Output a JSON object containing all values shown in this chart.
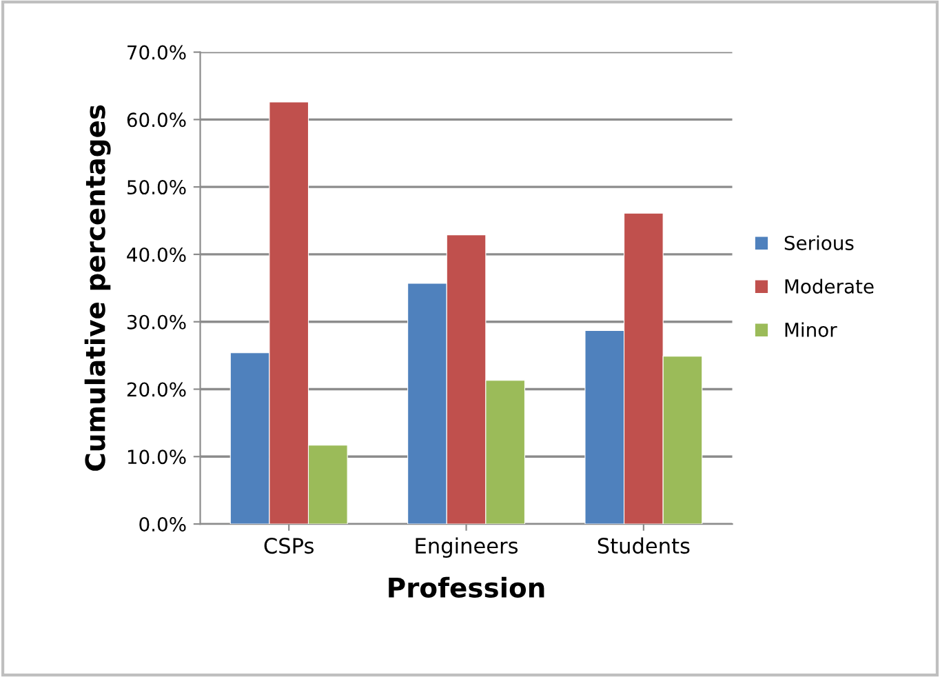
{
  "chart_data": {
    "type": "bar",
    "xlabel": "Profession",
    "ylabel": "Cumulative percentages",
    "categories": [
      "CSPs",
      "Engineers",
      "Students"
    ],
    "series": [
      {
        "name": "Serious",
        "color": "#4f81bd",
        "values": [
          25.4,
          35.7,
          28.7
        ]
      },
      {
        "name": "Moderate",
        "color": "#c0504d",
        "values": [
          62.6,
          42.9,
          46.1
        ]
      },
      {
        "name": "Minor",
        "color": "#9bbb59",
        "values": [
          11.7,
          21.3,
          24.9
        ]
      }
    ],
    "ylim": [
      0,
      70
    ],
    "yticks": [
      {
        "value": 0,
        "label": "0.0%"
      },
      {
        "value": 10,
        "label": "10.0%"
      },
      {
        "value": 20,
        "label": "20.0%"
      },
      {
        "value": 30,
        "label": "30.0%"
      },
      {
        "value": 40,
        "label": "40.0%"
      },
      {
        "value": 50,
        "label": "50.0%"
      },
      {
        "value": 60,
        "label": "60.0%"
      },
      {
        "value": 70,
        "label": "70.0%"
      }
    ],
    "grid": "y",
    "legend": "right"
  }
}
